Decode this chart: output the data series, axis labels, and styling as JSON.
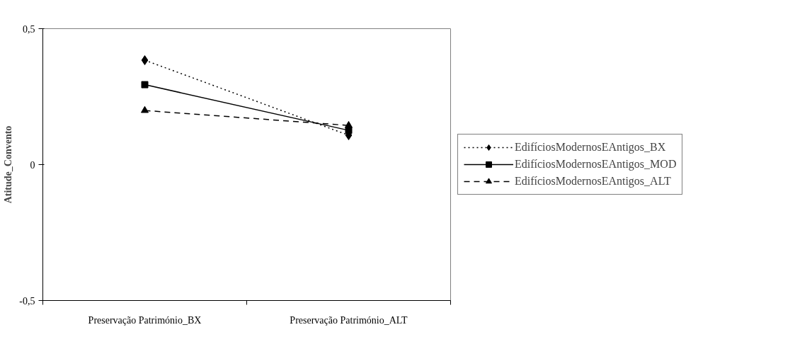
{
  "chart_data": {
    "type": "line",
    "ylabel": "Atitude_Convento",
    "categories": [
      "Preservação Património_BX",
      "Preservação Património_ALT"
    ],
    "series": [
      {
        "name": "EdifíciosModernosEAntigos_BX",
        "color": "#000000",
        "marker": "diamond",
        "line_style": "dotted",
        "values": [
          0.384,
          0.108
        ]
      },
      {
        "name": "EdifíciosModernosEAntigos_MOD",
        "color": "#000000",
        "marker": "square",
        "line_style": "solid",
        "values": [
          0.294,
          0.126
        ]
      },
      {
        "name": "EdifíciosModernosEAntigos_ALT",
        "color": "#000000",
        "marker": "triangle",
        "line_style": "dashed",
        "values": [
          0.199,
          0.144
        ]
      }
    ],
    "ylim": [
      -0.5,
      0.5
    ],
    "yticks": [
      {
        "value": -0.5,
        "label": "-0,5"
      },
      0,
      {
        "value": 0.5,
        "label": "0,5"
      }
    ],
    "grid": false,
    "legend": "right"
  }
}
